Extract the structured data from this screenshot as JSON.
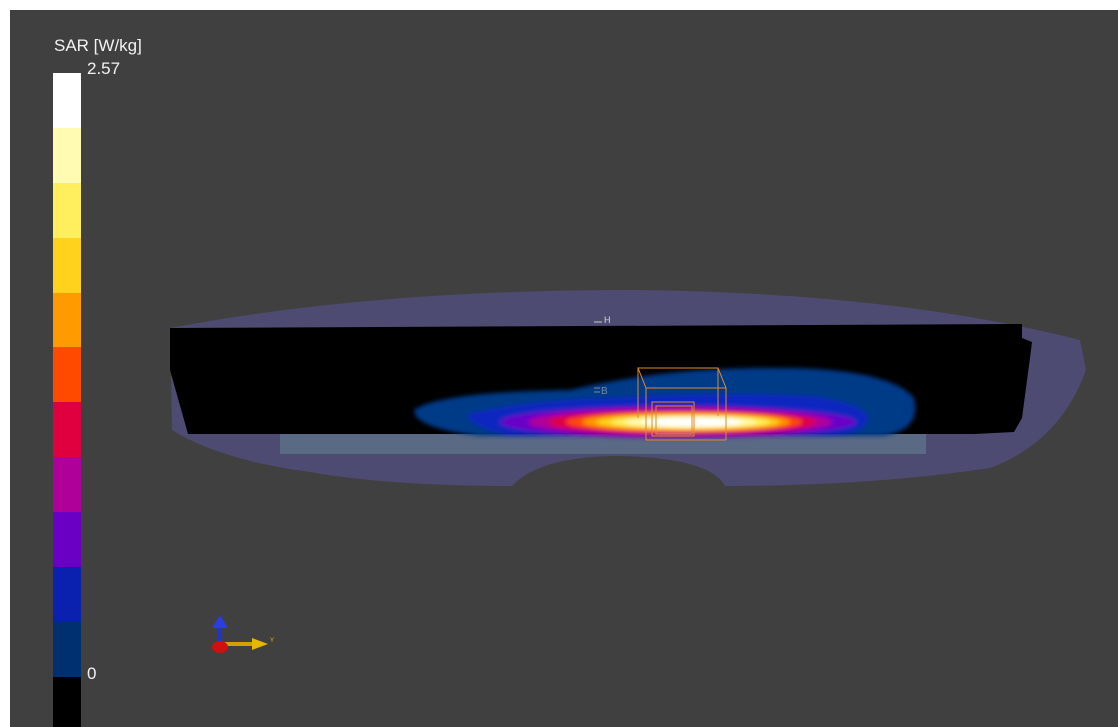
{
  "legend": {
    "title": "SAR [W/kg]",
    "max_label": "2.57",
    "min_label": "0",
    "colors": [
      "#ffffff",
      "#fffbb3",
      "#ffef5e",
      "#ffd21d",
      "#ff9a00",
      "#ff4a00",
      "#e00040",
      "#b0009a",
      "#6a00c4",
      "#0a21b0",
      "#003070",
      "#000000"
    ]
  },
  "scene": {
    "background": "#404040",
    "marker_h": "H",
    "marker_b": "B"
  },
  "triad": {
    "axis_label": "Y"
  }
}
